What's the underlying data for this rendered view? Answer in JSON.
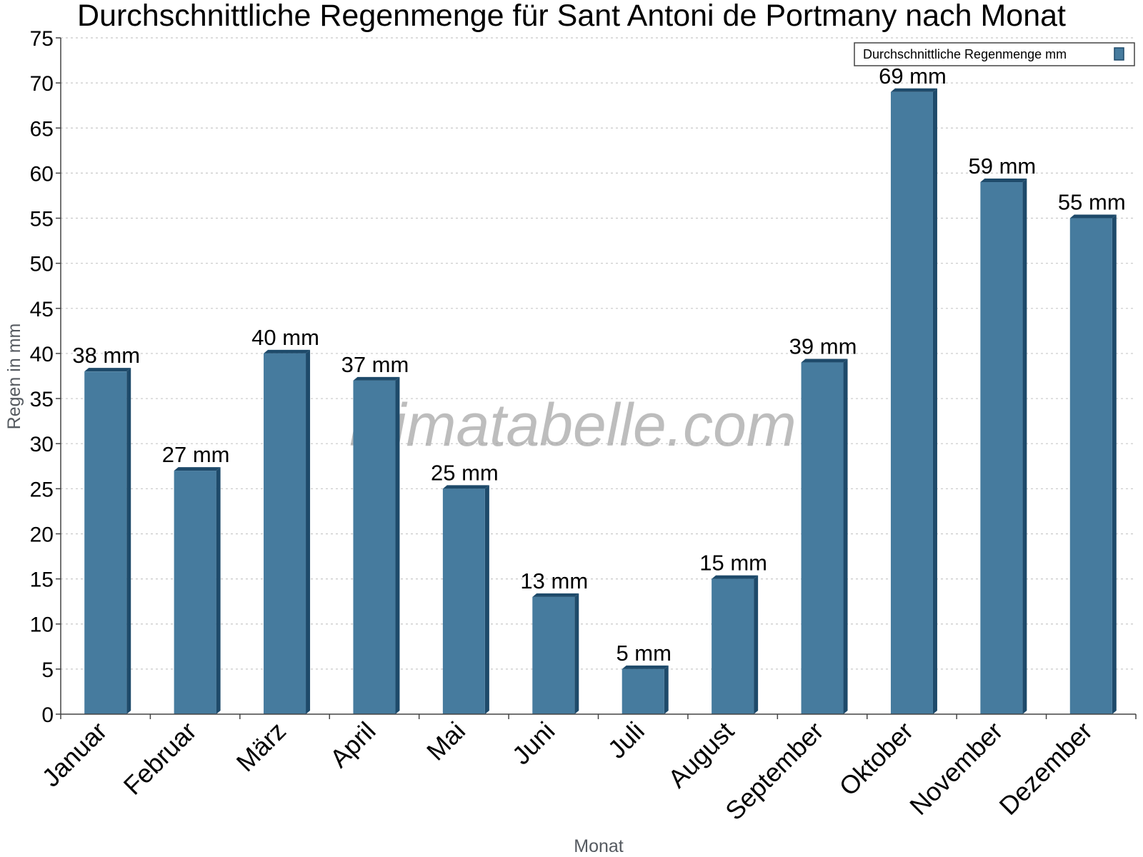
{
  "chart_data": {
    "type": "bar",
    "title": "Durchschnittliche Regenmenge für Sant Antoni de Portmany nach Monat",
    "xlabel": "Monat",
    "ylabel": "Regen in mm",
    "categories": [
      "Januar",
      "Februar",
      "März",
      "April",
      "Mai",
      "Juni",
      "Juli",
      "August",
      "September",
      "Oktober",
      "November",
      "Dezember"
    ],
    "series": [
      {
        "name": "Durchschnittliche Regenmenge mm",
        "values": [
          38,
          27,
          40,
          37,
          25,
          13,
          5,
          15,
          39,
          69,
          59,
          55
        ],
        "labels": [
          "38 mm",
          "27 mm",
          "40 mm",
          "37 mm",
          "25 mm",
          "13 mm",
          "5 mm",
          "15 mm",
          "39 mm",
          "69 mm",
          "59 mm",
          "55 mm"
        ],
        "color": "#467b9e",
        "side_color": "#1e4a6a"
      }
    ],
    "ylim": [
      0,
      75
    ],
    "yticks": [
      0,
      5,
      10,
      15,
      20,
      25,
      30,
      35,
      40,
      45,
      50,
      55,
      60,
      65,
      70,
      75
    ],
    "grid": true,
    "legend": "top-right"
  },
  "watermark": "klimatabelle.com"
}
